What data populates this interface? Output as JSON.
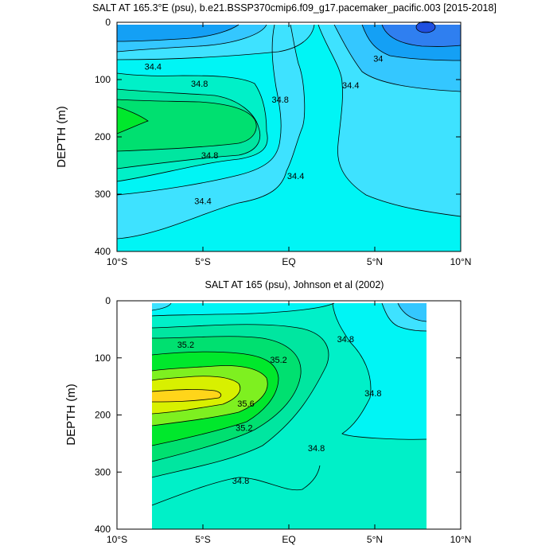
{
  "colors": {
    "c33_6": "#1f4fe0",
    "c33_8": "#2f7ff0",
    "c34_0": "#14a0f5",
    "c34_2": "#34c7ff",
    "c34_4": "#3ee2ff",
    "c34_6": "#00f5f5",
    "c34_8": "#00f0c8",
    "c35_0": "#00e6a0",
    "c35_2": "#00e070",
    "c35_4": "#00e82c",
    "c35_6": "#7ef020",
    "c35_8": "#d8f000",
    "c36_0": "#ffd51a"
  },
  "chart_data": [
    {
      "type": "contour",
      "title": "SALT AT 165.3°E (psu), b.e21.BSSP370cmip6.f09_g17.pacemaker_pacific.003 [2015-2018]",
      "ylabel": "DEPTH (m)",
      "xlim": [
        -10,
        10
      ],
      "ylim": [
        400,
        0
      ],
      "x_ticks": [
        -10,
        -5,
        0,
        5,
        10
      ],
      "x_tick_labels": [
        "10°S",
        "5°S",
        "EQ",
        "5°N",
        "10°N"
      ],
      "y_ticks": [
        0,
        100,
        200,
        300,
        400
      ],
      "y_tick_labels": [
        "0",
        "100",
        "200",
        "300",
        "400"
      ],
      "contour_interval": 0.2,
      "contour_labels": [
        {
          "text": "34.4",
          "x": -7.9,
          "y": 77
        },
        {
          "text": "34.8",
          "x": -5.2,
          "y": 107
        },
        {
          "text": "34.8",
          "x": -0.5,
          "y": 135
        },
        {
          "text": "34.4",
          "x": 3.6,
          "y": 110
        },
        {
          "text": "34",
          "x": 5.2,
          "y": 63
        },
        {
          "text": "34.8",
          "x": -4.6,
          "y": 232
        },
        {
          "text": "34.4",
          "x": 0.4,
          "y": 268
        },
        {
          "text": "34.4",
          "x": -5.0,
          "y": 312
        }
      ]
    },
    {
      "type": "contour",
      "title": "SALT AT 165 (psu), Johnson et al (2002)",
      "ylabel": "DEPTH (m)",
      "xlim": [
        -10,
        10
      ],
      "ylim": [
        400,
        0
      ],
      "data_x_range": [
        -8,
        8
      ],
      "x_ticks": [
        -10,
        -5,
        0,
        5,
        10
      ],
      "x_tick_labels": [
        "10°S",
        "5°S",
        "EQ",
        "5°N",
        "10°N"
      ],
      "y_ticks": [
        0,
        100,
        200,
        300,
        400
      ],
      "y_tick_labels": [
        "0",
        "100",
        "200",
        "300",
        "400"
      ],
      "contour_interval": 0.2,
      "contour_labels": [
        {
          "text": "35.2",
          "x": -6.0,
          "y": 77
        },
        {
          "text": "35.2",
          "x": -0.6,
          "y": 103
        },
        {
          "text": "34.8",
          "x": 3.3,
          "y": 67
        },
        {
          "text": "35.6",
          "x": -2.5,
          "y": 180
        },
        {
          "text": "34.8",
          "x": 4.9,
          "y": 162
        },
        {
          "text": "35.2",
          "x": -2.6,
          "y": 222
        },
        {
          "text": "34.8",
          "x": 1.6,
          "y": 258
        },
        {
          "text": "34.8",
          "x": -2.8,
          "y": 315
        }
      ]
    }
  ]
}
